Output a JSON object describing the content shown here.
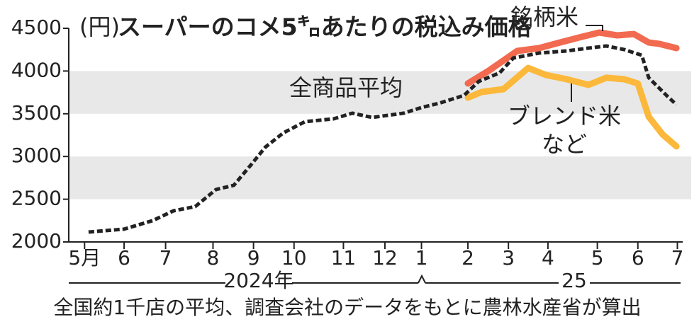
{
  "chart_data": {
    "type": "line",
    "title": "スーパーのコメ5㌔あたりの税込み価格",
    "y_unit": "(円)",
    "note": "全国約1千店の平均、調査会社のデータをもとに農林水産省が算出",
    "years": [
      "2024年",
      "25"
    ],
    "ylim": [
      2000,
      4500
    ],
    "yticks": [
      2000,
      2500,
      3000,
      3500,
      4000,
      4500
    ],
    "bands": [
      [
        2500,
        3000
      ],
      [
        3500,
        4000
      ]
    ],
    "xlim": [
      0,
      63
    ],
    "xticks": [
      {
        "value": 1.6,
        "label": "5月"
      },
      {
        "value": 5.6,
        "label": "6"
      },
      {
        "value": 9.8,
        "label": "7"
      },
      {
        "value": 14.6,
        "label": "8"
      },
      {
        "value": 18.7,
        "label": "9"
      },
      {
        "value": 22.8,
        "label": "10"
      },
      {
        "value": 27.8,
        "label": "11"
      },
      {
        "value": 32.0,
        "label": "12"
      },
      {
        "value": 35.7,
        "label": "1"
      },
      {
        "value": 40.4,
        "label": "2"
      },
      {
        "value": 44.5,
        "label": "3"
      },
      {
        "value": 48.5,
        "label": "4"
      },
      {
        "value": 53.5,
        "label": "5"
      },
      {
        "value": 57.6,
        "label": "6"
      },
      {
        "value": 61.6,
        "label": "7"
      }
    ],
    "series": [
      {
        "name": "全商品平均",
        "color": "#222222",
        "dashed": true,
        "x": [
          2.0,
          5.6,
          8.5,
          10.6,
          12.8,
          14.9,
          16.7,
          18.5,
          19.9,
          21.7,
          23.9,
          26.8,
          28.7,
          30.7,
          33.9,
          35.7,
          37.5,
          40.0,
          41.5,
          43.6,
          45.0,
          47.6,
          50.4,
          52.6,
          54.4,
          56.2,
          58.0,
          58.7,
          60.5,
          61.5
        ],
        "values": [
          2116,
          2150,
          2250,
          2364,
          2414,
          2613,
          2662,
          2910,
          3109,
          3275,
          3407,
          3440,
          3507,
          3457,
          3507,
          3573,
          3623,
          3714,
          3879,
          3978,
          4152,
          4210,
          4235,
          4268,
          4293,
          4252,
          4185,
          3921,
          3714,
          3606
        ]
      },
      {
        "name": "銘柄米",
        "color": "#f26a4f",
        "dashed": false,
        "x": [
          40.4,
          42.5,
          45.4,
          47.6,
          49.7,
          51.9,
          53.7,
          55.5,
          57.2,
          58.7,
          59.8,
          61.5
        ],
        "values": [
          3854,
          4003,
          4235,
          4268,
          4334,
          4400,
          4450,
          4417,
          4433,
          4334,
          4317,
          4268
        ]
      },
      {
        "name": "ブレンド米など",
        "color": "#fbb83a",
        "dashed": false,
        "x": [
          40.4,
          41.8,
          44.0,
          46.5,
          48.3,
          50.4,
          52.6,
          54.4,
          56.2,
          57.6,
          58.7,
          60.1,
          61.5
        ],
        "values": [
          3689,
          3755,
          3788,
          4036,
          3954,
          3904,
          3838,
          3921,
          3904,
          3854,
          3465,
          3258,
          3118
        ]
      }
    ]
  }
}
